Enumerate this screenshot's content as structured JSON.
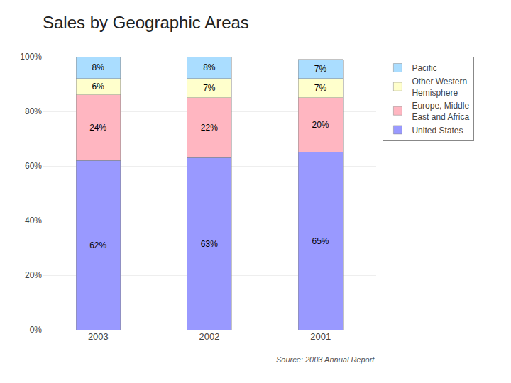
{
  "chart_data": {
    "type": "bar",
    "stacked": true,
    "title": "Sales by Geographic Areas",
    "annotations": [
      "Source: 2003 Annual Report"
    ],
    "categories": [
      "2003",
      "2002",
      "2001"
    ],
    "series": [
      {
        "name": "United States",
        "color": "#9999FF",
        "values": [
          62,
          63,
          65
        ],
        "value_labels": [
          "62%",
          "63%",
          "65%"
        ]
      },
      {
        "name": "Europe, Middle\nEast and Africa",
        "color": "#FFB6C1",
        "values": [
          24,
          22,
          20
        ],
        "value_labels": [
          "24%",
          "22%",
          "20%"
        ]
      },
      {
        "name": "Other Western\nHemisphere",
        "color": "#FFFFCC",
        "values": [
          6,
          7,
          7
        ],
        "value_labels": [
          "6%",
          "7%",
          "7%"
        ]
      },
      {
        "name": "Pacific",
        "color": "#AADDFF",
        "values": [
          8,
          8,
          7
        ],
        "value_labels": [
          "8%",
          "8%",
          "7%"
        ]
      }
    ],
    "ylim": [
      0,
      100
    ],
    "yticks": [
      {
        "value": 0,
        "label": "0%"
      },
      {
        "value": 20,
        "label": "20%"
      },
      {
        "value": 40,
        "label": "40%"
      },
      {
        "value": 60,
        "label": "60%"
      },
      {
        "value": 80,
        "label": "80%"
      },
      {
        "value": 100,
        "label": "100%"
      }
    ],
    "grid": true,
    "legend": "upper right",
    "data_labels": true
  }
}
